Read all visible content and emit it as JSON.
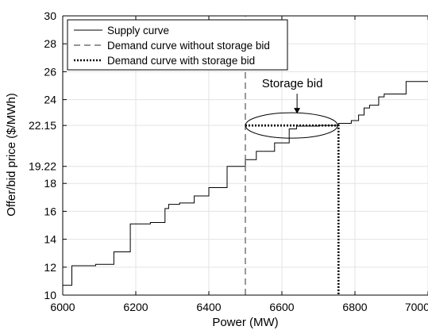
{
  "chart_data": {
    "type": "line",
    "xlabel": "Power (MW)",
    "ylabel": "Offer/bid price ($/MWh)",
    "xlim": [
      6000,
      7000
    ],
    "ylim": [
      10,
      30
    ],
    "xticks": [
      6000,
      6200,
      6400,
      6600,
      6800,
      7000
    ],
    "yticks": [
      10,
      12,
      14,
      16,
      18,
      19.22,
      22.15,
      24,
      26,
      28,
      30
    ],
    "ytick_labels": [
      "10",
      "12",
      "14",
      "16",
      "18",
      "19.22",
      "22.15",
      "24",
      "26",
      "28",
      "30"
    ],
    "grid": true,
    "legend_position": "top-left",
    "series": [
      {
        "name": "Supply curve",
        "style": "solid",
        "color": "#000000",
        "x": [
          6000,
          6025,
          6025,
          6090,
          6090,
          6140,
          6140,
          6185,
          6185,
          6240,
          6240,
          6280,
          6280,
          6290,
          6290,
          6320,
          6320,
          6360,
          6360,
          6400,
          6400,
          6450,
          6450,
          6500,
          6500,
          6530,
          6530,
          6580,
          6580,
          6620,
          6620,
          6640,
          6640,
          6700,
          6700,
          6755,
          6755,
          6790,
          6790,
          6810,
          6810,
          6825,
          6825,
          6840,
          6840,
          6865,
          6865,
          6880,
          6880,
          6940,
          6940,
          6965,
          6965,
          7000
        ],
        "y": [
          10.7,
          10.7,
          12.1,
          12.1,
          12.2,
          12.2,
          13.1,
          13.1,
          15.1,
          15.1,
          15.2,
          15.2,
          16.2,
          16.2,
          16.5,
          16.5,
          16.6,
          16.6,
          17.1,
          17.1,
          17.7,
          17.7,
          19.22,
          19.22,
          19.7,
          19.7,
          20.3,
          20.3,
          20.9,
          20.9,
          21.9,
          21.9,
          22.1,
          22.1,
          22.15,
          22.15,
          22.3,
          22.3,
          22.5,
          22.5,
          22.9,
          22.9,
          23.4,
          23.4,
          23.6,
          23.6,
          24.2,
          24.2,
          24.4,
          24.4,
          25.3,
          25.3,
          25.3,
          25.3
        ]
      },
      {
        "name": "Demand curve without storage bid",
        "style": "dashed",
        "color": "#555555",
        "x": [
          6500,
          6500
        ],
        "y": [
          10,
          30
        ]
      },
      {
        "name": "Demand curve with storage bid",
        "style": "dotted",
        "color": "#000000",
        "x": [
          6500,
          6755,
          6755
        ],
        "y": [
          22.15,
          22.15,
          10
        ]
      }
    ],
    "annotations": [
      {
        "text": "Storage bid",
        "x": 6635,
        "y": 22.15,
        "shape": "ellipse"
      }
    ]
  },
  "colors": {
    "axis": "#000000",
    "grid": "#e3e3e3",
    "background": "#ffffff"
  }
}
